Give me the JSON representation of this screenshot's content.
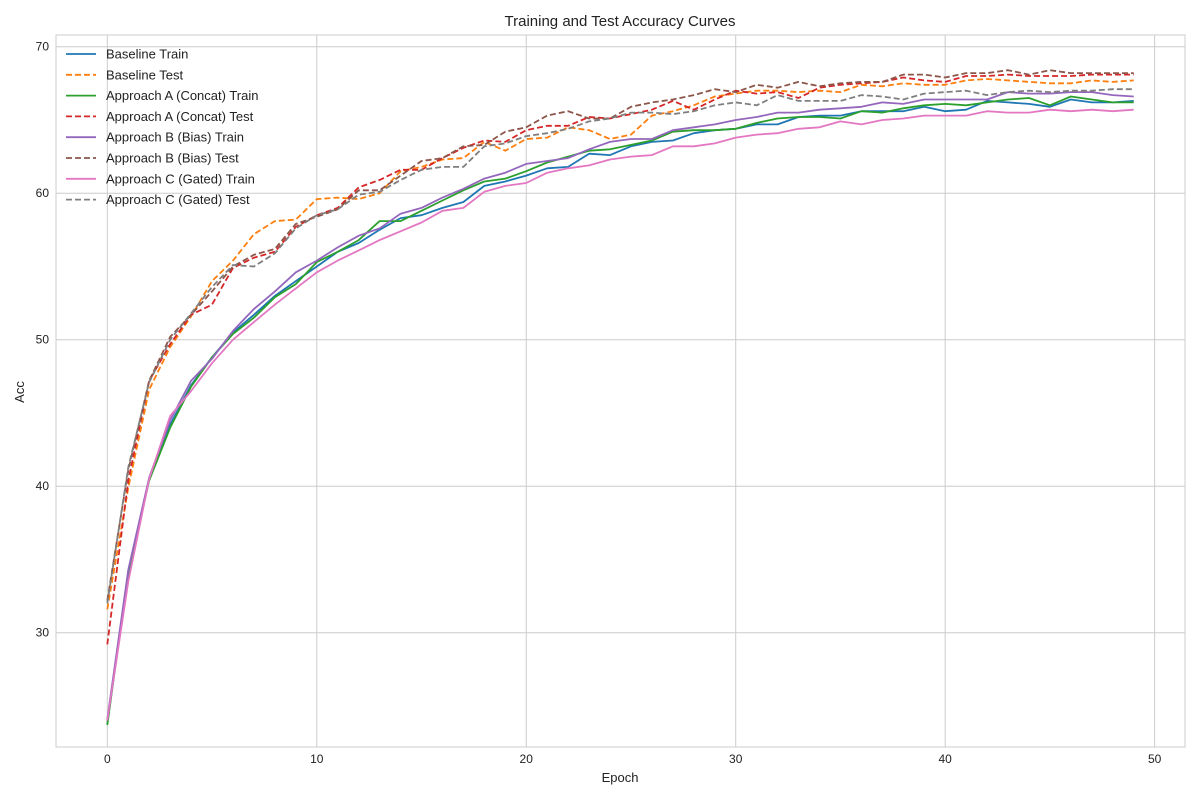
{
  "chart_data": {
    "type": "line",
    "title": "Training and Test Accuracy Curves",
    "xlabel": "Epoch",
    "ylabel": "Acc",
    "xlim": [
      -2.45,
      51.45
    ],
    "ylim": [
      22.2,
      70.8
    ],
    "xticks": [
      0,
      10,
      20,
      30,
      40,
      50
    ],
    "yticks": [
      30,
      40,
      50,
      60,
      70
    ],
    "grid": true,
    "legend_position": "top-left",
    "x": [
      0,
      1,
      2,
      3,
      4,
      5,
      6,
      7,
      8,
      9,
      10,
      11,
      12,
      13,
      14,
      15,
      16,
      17,
      18,
      19,
      20,
      21,
      22,
      23,
      24,
      25,
      26,
      27,
      28,
      29,
      30,
      31,
      32,
      33,
      34,
      35,
      36,
      37,
      38,
      39,
      40,
      41,
      42,
      43,
      44,
      45,
      46,
      47,
      48,
      49
    ],
    "series": [
      {
        "name": "Baseline Train",
        "color": "#1f77b4",
        "style": "solid",
        "values": [
          23.8,
          34.0,
          40.5,
          44.2,
          46.9,
          48.8,
          50.5,
          51.7,
          53.0,
          54.0,
          55.0,
          56.0,
          56.6,
          57.5,
          58.3,
          58.5,
          59.0,
          59.4,
          60.5,
          60.8,
          61.2,
          61.7,
          61.8,
          62.7,
          62.6,
          63.2,
          63.5,
          63.6,
          64.1,
          64.3,
          64.4,
          64.7,
          64.7,
          65.2,
          65.3,
          65.3,
          65.6,
          65.6,
          65.6,
          65.9,
          65.6,
          65.7,
          66.3,
          66.2,
          66.1,
          65.9,
          66.4,
          66.2,
          66.2,
          66.3
        ]
      },
      {
        "name": "Baseline Test",
        "color": "#ff7f0e",
        "style": "dashed",
        "values": [
          31.6,
          39.9,
          46.6,
          49.5,
          51.6,
          54.0,
          55.4,
          57.2,
          58.1,
          58.2,
          59.6,
          59.7,
          59.6,
          60.0,
          61.5,
          61.8,
          62.3,
          62.4,
          63.5,
          62.9,
          63.7,
          63.8,
          64.5,
          64.3,
          63.7,
          64.0,
          65.3,
          65.6,
          66.0,
          66.6,
          66.8,
          67.0,
          67.0,
          66.9,
          67.0,
          66.9,
          67.4,
          67.3,
          67.5,
          67.4,
          67.4,
          67.7,
          67.8,
          67.7,
          67.6,
          67.5,
          67.5,
          67.7,
          67.6,
          67.7
        ]
      },
      {
        "name": "Approach A (Concat) Train",
        "color": "#2ca02c",
        "style": "solid",
        "values": [
          23.7,
          34.2,
          40.4,
          44.0,
          46.8,
          48.8,
          50.4,
          51.5,
          52.9,
          53.8,
          55.3,
          56.0,
          56.8,
          58.1,
          58.1,
          58.8,
          59.5,
          60.2,
          60.8,
          61.0,
          61.5,
          62.1,
          62.5,
          62.9,
          63.0,
          63.3,
          63.6,
          64.2,
          64.3,
          64.3,
          64.4,
          64.8,
          65.1,
          65.2,
          65.2,
          65.1,
          65.6,
          65.5,
          65.8,
          66.0,
          66.1,
          66.0,
          66.2,
          66.4,
          66.5,
          66.0,
          66.6,
          66.4,
          66.2,
          66.2
        ]
      },
      {
        "name": "Approach A (Concat) Test",
        "color": "#d62728",
        "style": "dashed",
        "values": [
          29.2,
          40.4,
          47.2,
          49.7,
          51.7,
          52.4,
          54.9,
          55.6,
          56.0,
          57.7,
          58.5,
          59.0,
          60.4,
          60.9,
          61.6,
          61.6,
          62.4,
          63.1,
          63.6,
          63.5,
          64.3,
          64.6,
          64.6,
          65.2,
          65.1,
          65.4,
          65.7,
          66.3,
          65.7,
          66.4,
          67.0,
          66.8,
          66.9,
          66.5,
          67.2,
          67.4,
          67.5,
          67.6,
          67.9,
          67.7,
          67.6,
          68.0,
          68.0,
          68.1,
          68.0,
          68.0,
          68.0,
          68.1,
          68.1,
          68.1
        ]
      },
      {
        "name": "Approach B (Bias) Train",
        "color": "#9467bd",
        "style": "solid",
        "values": [
          24.1,
          34.3,
          40.6,
          44.5,
          47.2,
          48.7,
          50.6,
          52.1,
          53.3,
          54.6,
          55.4,
          56.3,
          57.1,
          57.6,
          58.6,
          59.0,
          59.7,
          60.3,
          61.0,
          61.4,
          62.0,
          62.2,
          62.4,
          63.0,
          63.5,
          63.7,
          63.7,
          64.3,
          64.5,
          64.7,
          65.0,
          65.2,
          65.5,
          65.5,
          65.7,
          65.8,
          65.9,
          66.2,
          66.1,
          66.4,
          66.4,
          66.4,
          66.4,
          66.9,
          66.8,
          66.8,
          66.9,
          66.9,
          66.7,
          66.6
        ]
      },
      {
        "name": "Approach B (Bias) Test",
        "color": "#8c564b",
        "style": "dashed",
        "values": [
          32.2,
          41.1,
          47.2,
          50.2,
          51.7,
          53.3,
          55.0,
          55.8,
          56.2,
          57.9,
          58.4,
          58.9,
          60.2,
          60.2,
          61.2,
          62.2,
          62.4,
          63.2,
          63.3,
          64.2,
          64.5,
          65.3,
          65.6,
          65.1,
          65.1,
          65.9,
          66.2,
          66.4,
          66.7,
          67.1,
          66.9,
          67.4,
          67.2,
          67.6,
          67.3,
          67.5,
          67.6,
          67.6,
          68.1,
          68.1,
          67.9,
          68.2,
          68.2,
          68.4,
          68.1,
          68.4,
          68.2,
          68.2,
          68.2,
          68.2
        ]
      },
      {
        "name": "Approach C (Gated) Train",
        "color": "#e377c2",
        "style": "solid",
        "values": [
          24.0,
          33.5,
          40.5,
          44.8,
          46.5,
          48.4,
          50.0,
          51.2,
          52.4,
          53.5,
          54.6,
          55.4,
          56.1,
          56.8,
          57.4,
          58.0,
          58.8,
          59.0,
          60.1,
          60.5,
          60.7,
          61.4,
          61.7,
          61.9,
          62.3,
          62.5,
          62.6,
          63.2,
          63.2,
          63.4,
          63.8,
          64.0,
          64.1,
          64.4,
          64.5,
          64.9,
          64.7,
          65.0,
          65.1,
          65.3,
          65.3,
          65.3,
          65.6,
          65.5,
          65.5,
          65.7,
          65.6,
          65.7,
          65.6,
          65.7
        ]
      },
      {
        "name": "Approach C (Gated) Test",
        "color": "#7f7f7f",
        "style": "dashed",
        "values": [
          32.0,
          41.3,
          47.1,
          50.0,
          51.8,
          53.6,
          55.1,
          55.0,
          55.9,
          57.6,
          58.5,
          58.9,
          59.9,
          60.1,
          60.9,
          61.6,
          61.8,
          61.8,
          63.2,
          63.4,
          63.9,
          64.1,
          64.4,
          64.9,
          65.1,
          65.5,
          65.5,
          65.4,
          65.6,
          66.0,
          66.2,
          66.0,
          66.7,
          66.3,
          66.3,
          66.3,
          66.7,
          66.6,
          66.4,
          66.8,
          66.9,
          67.0,
          66.7,
          66.9,
          67.0,
          66.9,
          67.0,
          67.0,
          67.1,
          67.1
        ]
      }
    ]
  }
}
